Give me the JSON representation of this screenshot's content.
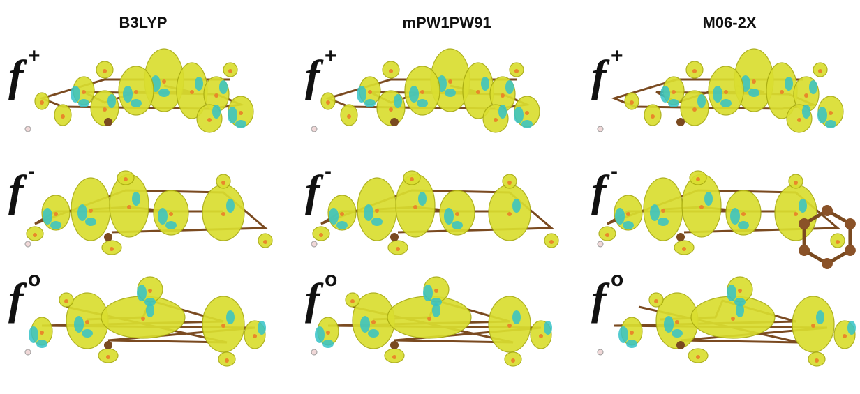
{
  "columns": [
    "B3LYP",
    "mPW1PW91",
    "M06-2X"
  ],
  "rows": [
    {
      "symbol": "f",
      "superscript": "+"
    },
    {
      "symbol": "f",
      "superscript": "-"
    },
    {
      "symbol": "f",
      "superscript": "o"
    }
  ]
}
